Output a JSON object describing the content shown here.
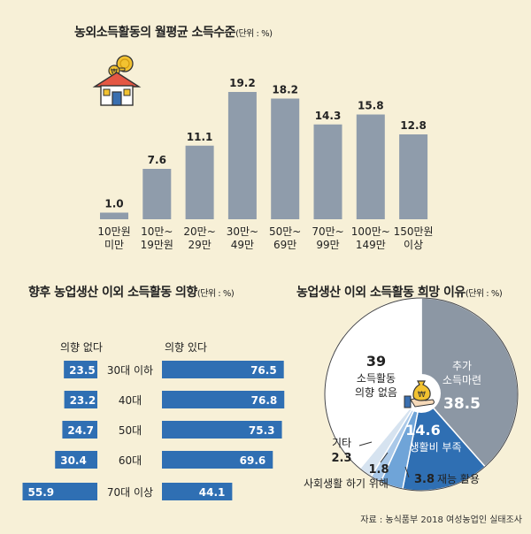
{
  "chart_data": [
    {
      "type": "bar",
      "title": "농외소득활동의 월평균 소득수준",
      "unit": "(단위 : %)",
      "categories": [
        [
          "10만원",
          "미만"
        ],
        [
          "10만~",
          "19만원"
        ],
        [
          "20만~",
          "29만"
        ],
        [
          "30만~",
          "49만"
        ],
        [
          "50만~",
          "69만"
        ],
        [
          "70만~",
          "99만"
        ],
        [
          "100만~",
          "149만"
        ],
        [
          "150만원",
          "이상"
        ]
      ],
      "values": [
        1.0,
        7.6,
        11.1,
        19.2,
        18.2,
        14.3,
        15.8,
        12.8
      ],
      "value_labels": [
        "1.0",
        "7.6",
        "11.1",
        "19.2",
        "18.2",
        "14.3",
        "15.8",
        "12.8"
      ],
      "ylim": [
        0,
        20
      ],
      "colors": {
        "bar": "#8f9cab"
      }
    },
    {
      "type": "bar",
      "title": "향후 농업생산 이외 소득활동 의향",
      "unit": "(단위 : %)",
      "orientation": "horizontal-diverging",
      "left_header": "의향 없다",
      "right_header": "의향 있다",
      "categories": [
        "30대 이하",
        "40대",
        "50대",
        "60대",
        "70대 이상"
      ],
      "series": [
        {
          "name": "의향 없다",
          "values": [
            23.5,
            23.2,
            24.7,
            30.4,
            55.9
          ],
          "labels": [
            "23.5",
            "23.2",
            "24.7",
            "30.4",
            "55.9"
          ]
        },
        {
          "name": "의향 있다",
          "values": [
            76.5,
            76.8,
            75.3,
            69.6,
            44.1
          ],
          "labels": [
            "76.5",
            "76.8",
            "75.3",
            "69.6",
            "44.1"
          ]
        }
      ],
      "colors": {
        "bar": "#2f6fb3"
      }
    },
    {
      "type": "pie",
      "title": "농업생산 이외 소득활동 희망 이유",
      "unit": "(단위 : %)",
      "slices": [
        {
          "name": [
            "추가",
            "소득마련"
          ],
          "value": 38.5,
          "label": "38.5",
          "color": "#8c97a4"
        },
        {
          "name": [
            "생활비 부족"
          ],
          "value": 14.6,
          "label": "14.6",
          "color": "#2f6fb3"
        },
        {
          "name": [
            "재능 활용"
          ],
          "value": 3.8,
          "label": "3.8",
          "color": "#6fa4d8"
        },
        {
          "name": [
            "사회생활 하기 위해"
          ],
          "value": 1.8,
          "label": "1.8",
          "color": "#a9c8e8"
        },
        {
          "name": [
            "기타"
          ],
          "value": 2.3,
          "label": "2.3",
          "color": "#d6e3f0"
        },
        {
          "name": [
            "소득활동",
            "의향 없음"
          ],
          "value": 39,
          "label": "39",
          "color": "#ffffff"
        }
      ]
    }
  ],
  "source": "자료 : 농식품부 2018 여성농업인 실태조사",
  "colors": {
    "background": "#f7f0d7",
    "coin": "#f2c230"
  },
  "icons": [
    "house-coin-icon",
    "money-bag-icon"
  ]
}
